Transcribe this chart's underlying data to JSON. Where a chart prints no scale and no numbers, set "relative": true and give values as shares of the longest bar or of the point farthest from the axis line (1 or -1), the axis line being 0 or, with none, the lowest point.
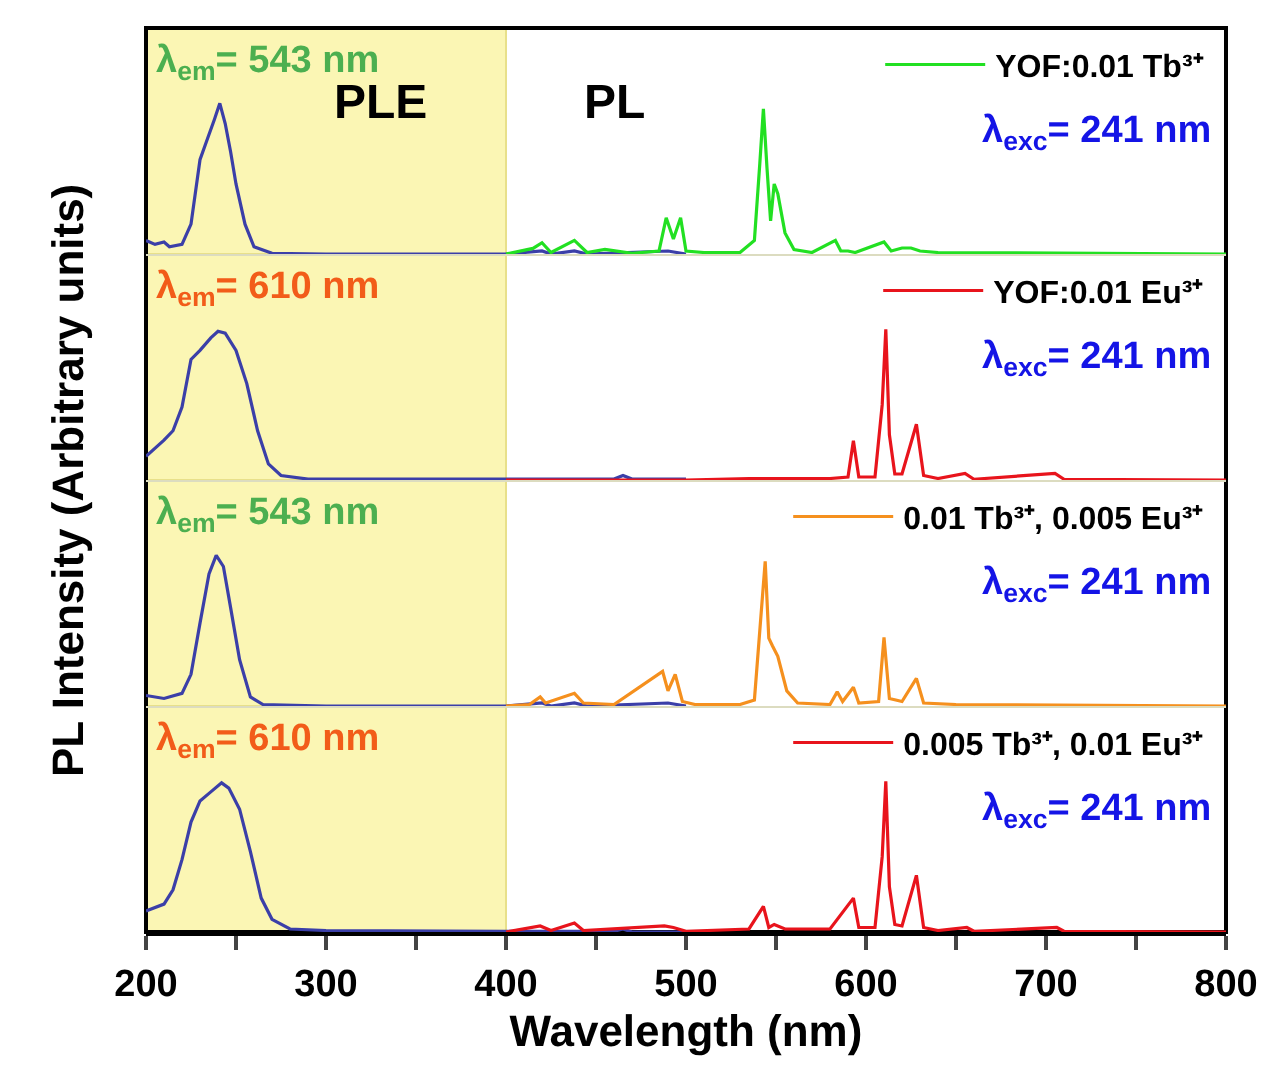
{
  "chart_data": [
    {
      "type": "line",
      "relative": true,
      "xlim": [
        200,
        800
      ],
      "tick_labels": false,
      "legend": "top right",
      "ylabel": "PL Intensity (Arbitrary units)",
      "bands": [
        {
          "axis": "x",
          "from": 200,
          "to": 400,
          "color": "#fbf6b4"
        }
      ],
      "annotations": [
        "λ$_{em}$= 543 nm",
        "PLE",
        "PL",
        "λ$_{exc}$= 241 nm"
      ],
      "series": [
        {
          "color": "#3b3fa8",
          "x": [
            200,
            205,
            210,
            213,
            220,
            225,
            230,
            234,
            238,
            241,
            244,
            247,
            250,
            255,
            260,
            270,
            300,
            400,
            420,
            425,
            438,
            445,
            490,
            500
          ],
          "values": [
            0.09,
            0.064,
            0.08,
            0.048,
            0.064,
            0.198,
            0.626,
            0.76,
            0.893,
            1.0,
            0.866,
            0.679,
            0.465,
            0.198,
            0.048,
            0.005,
            0,
            0,
            0.02,
            0,
            0.02,
            0,
            0.02,
            0
          ]
        },
        {
          "name": "YOF:0.01 Tb³⁺",
          "color": "#22e022",
          "x": [
            400,
            415,
            420,
            425,
            438,
            445,
            455,
            470,
            485,
            489,
            493,
            497,
            500,
            510,
            530,
            538,
            541,
            543,
            545,
            547,
            549,
            551,
            555,
            560,
            570,
            583,
            586,
            590,
            594,
            610,
            614,
            620,
            625,
            630,
            640,
            800
          ],
          "values": [
            0,
            0.037,
            0.075,
            0.01,
            0.09,
            0.01,
            0.03,
            0.005,
            0.02,
            0.24,
            0.1,
            0.24,
            0.02,
            0.01,
            0.01,
            0.09,
            0.6,
            0.963,
            0.57,
            0.22,
            0.465,
            0.4,
            0.14,
            0.03,
            0.01,
            0.09,
            0.02,
            0.02,
            0.01,
            0.08,
            0.02,
            0.04,
            0.04,
            0.02,
            0.01,
            0
          ]
        }
      ]
    },
    {
      "type": "line",
      "relative": true,
      "xlim": [
        200,
        800
      ],
      "tick_labels": false,
      "legend": "top right",
      "bands": [
        {
          "axis": "x",
          "from": 200,
          "to": 400,
          "color": "#fbf6b4"
        }
      ],
      "annotations": [
        "λ$_{em}$= 610 nm",
        "λ$_{exc}$= 241 nm"
      ],
      "series": [
        {
          "color": "#3b3fa8",
          "x": [
            200,
            210,
            215,
            220,
            225,
            230,
            236,
            240,
            244,
            250,
            256,
            262,
            268,
            275,
            290,
            400,
            460,
            465,
            470,
            500
          ],
          "values": [
            0.157,
            0.264,
            0.327,
            0.484,
            0.8,
            0.86,
            0.943,
            0.987,
            0.975,
            0.86,
            0.64,
            0.327,
            0.107,
            0.03,
            0.006,
            0.006,
            0.006,
            0.03,
            0.006,
            0.006
          ]
        },
        {
          "name": "YOF:0.01 Eu³⁺",
          "color": "#e8141c",
          "x": [
            400,
            500,
            535,
            580,
            590,
            593,
            596,
            605,
            609,
            611,
            613,
            616,
            620,
            628,
            632,
            640,
            655,
            660,
            705,
            710,
            800
          ],
          "values": [
            0,
            0,
            0.01,
            0.01,
            0.02,
            0.26,
            0.02,
            0.02,
            0.5,
            1.0,
            0.3,
            0.04,
            0.04,
            0.37,
            0.03,
            0.01,
            0.044,
            0.005,
            0.044,
            0.005,
            0
          ]
        }
      ]
    },
    {
      "type": "line",
      "relative": true,
      "xlim": [
        200,
        800
      ],
      "tick_labels": false,
      "legend": "top right",
      "bands": [
        {
          "axis": "x",
          "from": 200,
          "to": 400,
          "color": "#fbf6b4"
        }
      ],
      "annotations": [
        "λ$_{em}$= 543 nm",
        "λ$_{exc}$= 241 nm"
      ],
      "series": [
        {
          "color": "#3b3fa8",
          "x": [
            200,
            210,
            220,
            225,
            230,
            235,
            239,
            243,
            247,
            252,
            258,
            265,
            300,
            400,
            420,
            425,
            438,
            445,
            490,
            500
          ],
          "values": [
            0.07,
            0.05,
            0.084,
            0.21,
            0.55,
            0.876,
            1.0,
            0.926,
            0.653,
            0.307,
            0.06,
            0.01,
            0,
            0,
            0.02,
            0,
            0.02,
            0,
            0.02,
            0
          ]
        },
        {
          "name": "0.01 Tb³⁺, 0.005 Eu³⁺",
          "color": "#f5901e",
          "x": [
            400,
            413,
            419,
            422,
            438,
            443,
            460,
            487,
            490,
            494,
            498,
            505,
            530,
            538,
            541,
            544,
            546,
            548,
            551,
            556,
            562,
            580,
            584,
            587,
            593,
            596,
            607,
            610,
            613,
            620,
            628,
            632,
            650,
            800
          ],
          "values": [
            0,
            0.01,
            0.06,
            0.02,
            0.084,
            0.02,
            0.01,
            0.23,
            0.1,
            0.21,
            0.03,
            0.01,
            0.01,
            0.04,
            0.5,
            0.96,
            0.45,
            0.4,
            0.33,
            0.1,
            0.02,
            0.01,
            0.094,
            0.03,
            0.124,
            0.02,
            0.03,
            0.455,
            0.05,
            0.03,
            0.183,
            0.02,
            0.01,
            0
          ]
        }
      ]
    },
    {
      "type": "line",
      "relative": true,
      "xlim": [
        200,
        800
      ],
      "tick_labels": "x",
      "legend": "top right",
      "xlabel": "Wavelength (nm)",
      "xticks": [
        200,
        {
          "value": 250,
          "label": null
        },
        300,
        {
          "value": 350,
          "label": null
        },
        400,
        {
          "value": 450,
          "label": null
        },
        500,
        {
          "value": 550,
          "label": null
        },
        600,
        {
          "value": 650,
          "label": null
        },
        700,
        {
          "value": 750,
          "label": null
        },
        800
      ],
      "bands": [
        {
          "axis": "x",
          "from": 200,
          "to": 400,
          "color": "#fbf6b4"
        }
      ],
      "annotations": [
        "λ$_{em}$= 610 nm",
        "λ$_{exc}$= 241 nm"
      ],
      "series": [
        {
          "color": "#3b3fa8",
          "x": [
            200,
            210,
            215,
            220,
            225,
            230,
            236,
            242,
            246,
            252,
            258,
            264,
            270,
            280,
            300,
            400,
            460,
            465,
            470,
            500
          ],
          "values": [
            0.14,
            0.185,
            0.28,
            0.48,
            0.73,
            0.87,
            0.93,
            0.99,
            0.955,
            0.815,
            0.534,
            0.225,
            0.084,
            0.02,
            0.01,
            0.005,
            0.005,
            0.02,
            0,
            0
          ]
        },
        {
          "name": "0.005 Tb³⁺, 0.01 Eu³⁺",
          "color": "#e8141c",
          "x": [
            400,
            419,
            425,
            438,
            443,
            488,
            493,
            500,
            535,
            543,
            546,
            549,
            555,
            580,
            593,
            596,
            605,
            609,
            611,
            613,
            616,
            620,
            628,
            632,
            640,
            656,
            660,
            706,
            710,
            800
          ],
          "values": [
            0,
            0.04,
            0.01,
            0.06,
            0.01,
            0.04,
            0.03,
            0.005,
            0.02,
            0.17,
            0.03,
            0.05,
            0.02,
            0.02,
            0.225,
            0.03,
            0.03,
            0.5,
            1.0,
            0.3,
            0.05,
            0.04,
            0.376,
            0.03,
            0.01,
            0.03,
            0.005,
            0.03,
            0.005,
            0
          ]
        }
      ]
    }
  ]
}
